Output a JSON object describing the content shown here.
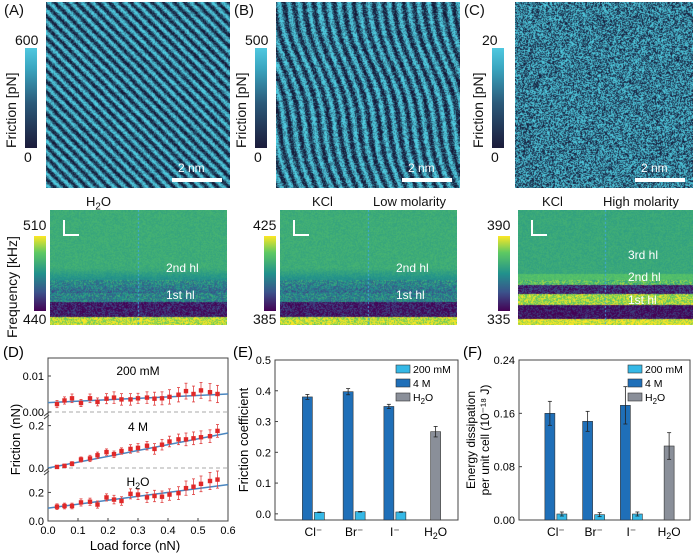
{
  "afm_panels": [
    {
      "label": "(A)",
      "cbar_label": "Friction [pN]",
      "cbar_max": "600",
      "cbar_min": "0",
      "scale": "2 nm",
      "pattern": "ordered"
    },
    {
      "label": "(B)",
      "cbar_label": "Friction [pN]",
      "cbar_max": "500",
      "cbar_min": "0",
      "scale": "2 nm",
      "pattern": "semi"
    },
    {
      "label": "(C)",
      "cbar_label": "Friction [pN]",
      "cbar_max": "20",
      "cbar_min": "0",
      "scale": "2 nm",
      "pattern": "noise"
    }
  ],
  "freq_panels": [
    {
      "title_left": "H2O",
      "title_right": "",
      "cbar_max": "510",
      "cbar_min": "440",
      "layers": [
        "2nd hl",
        "1st hl"
      ]
    },
    {
      "title_left": "KCl",
      "title_right": "Low molarity",
      "cbar_max": "425",
      "cbar_min": "385",
      "layers": [
        "2nd hl",
        "1st hl"
      ]
    },
    {
      "title_left": "KCl",
      "title_right": "High molarity",
      "cbar_max": "390",
      "cbar_min": "335",
      "layers": [
        "3rd hl",
        "2nd hl",
        "1st hl"
      ]
    }
  ],
  "freq_ylabel": "Frequency [kHz]",
  "chart_data": [
    {
      "id": "D",
      "label": "(D)",
      "type": "scatter",
      "xlabel": "Load force (nN)",
      "ylabel": "Friction (nN)",
      "xlim": [
        0,
        0.6
      ],
      "xticks": [
        "0.0",
        "0.1",
        "0.2",
        "0.3",
        "0.4",
        "0.5",
        "0.6"
      ],
      "x": [
        0.03,
        0.055,
        0.08,
        0.11,
        0.14,
        0.165,
        0.195,
        0.22,
        0.245,
        0.275,
        0.3,
        0.33,
        0.355,
        0.38,
        0.405,
        0.435,
        0.46,
        0.485,
        0.51,
        0.54,
        0.565
      ],
      "series": [
        {
          "name": "200 mM",
          "ylim": [
            0,
            0.015
          ],
          "yticks": [
            "0.00",
            "0.01"
          ],
          "values": [
            0.0022,
            0.0032,
            0.0038,
            0.0025,
            0.0038,
            0.0028,
            0.0037,
            0.004,
            0.0035,
            0.0035,
            0.0038,
            0.004,
            0.0037,
            0.0038,
            0.0042,
            0.0048,
            0.0058,
            0.005,
            0.006,
            0.0055,
            0.005
          ],
          "errors": [
            0.001,
            0.001,
            0.0012,
            0.001,
            0.0012,
            0.0011,
            0.0014,
            0.0016,
            0.0016,
            0.0016,
            0.0014,
            0.0016,
            0.0018,
            0.0018,
            0.002,
            0.002,
            0.0022,
            0.0022,
            0.0022,
            0.0024,
            0.0024
          ],
          "fit": [
            0.0026,
            0.005
          ]
        },
        {
          "name": "4 M",
          "ylim": [
            0,
            0.25
          ],
          "yticks": [
            "0.0",
            "0.2"
          ],
          "values": [
            0.005,
            0.01,
            0.02,
            0.04,
            0.045,
            0.06,
            0.075,
            0.065,
            0.08,
            0.09,
            0.095,
            0.105,
            0.09,
            0.11,
            0.125,
            0.135,
            0.135,
            0.14,
            0.145,
            0.15,
            0.175
          ],
          "errors": [
            0.005,
            0.008,
            0.01,
            0.012,
            0.015,
            0.015,
            0.015,
            0.015,
            0.015,
            0.02,
            0.02,
            0.02,
            0.025,
            0.025,
            0.025,
            0.025,
            0.03,
            0.03,
            0.03,
            0.03,
            0.03
          ],
          "fit": [
            0.0,
            0.165
          ]
        },
        {
          "name": "H2O",
          "ylim": [
            0,
            0.35
          ],
          "yticks": [
            "0.0",
            "0.2"
          ],
          "values": [
            0.1,
            0.105,
            0.105,
            0.13,
            0.135,
            0.115,
            0.165,
            0.15,
            0.14,
            0.19,
            0.185,
            0.165,
            0.175,
            0.17,
            0.185,
            0.195,
            0.23,
            0.24,
            0.26,
            0.28,
            0.29
          ],
          "errors": [
            0.02,
            0.02,
            0.02,
            0.025,
            0.025,
            0.025,
            0.025,
            0.03,
            0.03,
            0.035,
            0.035,
            0.035,
            0.04,
            0.04,
            0.04,
            0.045,
            0.05,
            0.055,
            0.055,
            0.06,
            0.06
          ],
          "fit": [
            0.09,
            0.255
          ]
        }
      ]
    },
    {
      "id": "E",
      "label": "(E)",
      "type": "bar",
      "ylabel": "Friction coefficient",
      "categories": [
        "Cl⁻",
        "Br⁻",
        "I⁻",
        "H2O"
      ],
      "ylim": [
        -0.02,
        0.5
      ],
      "yticks": [
        "0.0",
        "0.1",
        "0.2",
        "0.3",
        "0.4",
        "0.5"
      ],
      "legend": [
        "200 mM",
        "4 M",
        "H2O"
      ],
      "legend_position": "top-right",
      "colors": {
        "200 mM": "#35b8e6",
        "4 M": "#1f6fb8",
        "H2O": "#8a8f99"
      },
      "series": [
        {
          "name": "4 M",
          "values": [
            0.38,
            0.397,
            0.349,
            null
          ],
          "errors": [
            0.008,
            0.01,
            0.007,
            null
          ]
        },
        {
          "name": "200 mM",
          "values": [
            0.005,
            0.007,
            0.006,
            null
          ],
          "errors": [
            0.001,
            0.001,
            0.001,
            null
          ]
        },
        {
          "name": "H2O",
          "values": [
            null,
            null,
            null,
            0.267
          ],
          "errors": [
            null,
            null,
            null,
            0.017
          ]
        }
      ]
    },
    {
      "id": "F",
      "label": "(F)",
      "type": "bar",
      "ylabel": "Energy dissipation",
      "ylabel2": "per unit cell (10⁻¹⁸ J)",
      "categories": [
        "Cl⁻",
        "Br⁻",
        "I⁻",
        "H2O"
      ],
      "ylim": [
        0,
        0.24
      ],
      "yticks": [
        "0.00",
        "0.08",
        "0.16",
        "0.24"
      ],
      "legend": [
        "200 mM",
        "4 M",
        "H2O"
      ],
      "legend_position": "top-right",
      "colors": {
        "200 mM": "#35b8e6",
        "4 M": "#1f6fb8",
        "H2O": "#8a8f99"
      },
      "series": [
        {
          "name": "4 M",
          "values": [
            0.16,
            0.148,
            0.172,
            null
          ],
          "errors": [
            0.018,
            0.015,
            0.028,
            null
          ]
        },
        {
          "name": "200 mM",
          "values": [
            0.009,
            0.008,
            0.009,
            null
          ],
          "errors": [
            0.003,
            0.003,
            0.003,
            null
          ]
        },
        {
          "name": "H2O",
          "values": [
            null,
            null,
            null,
            0.111
          ],
          "errors": [
            null,
            null,
            null,
            0.02
          ]
        }
      ]
    }
  ]
}
